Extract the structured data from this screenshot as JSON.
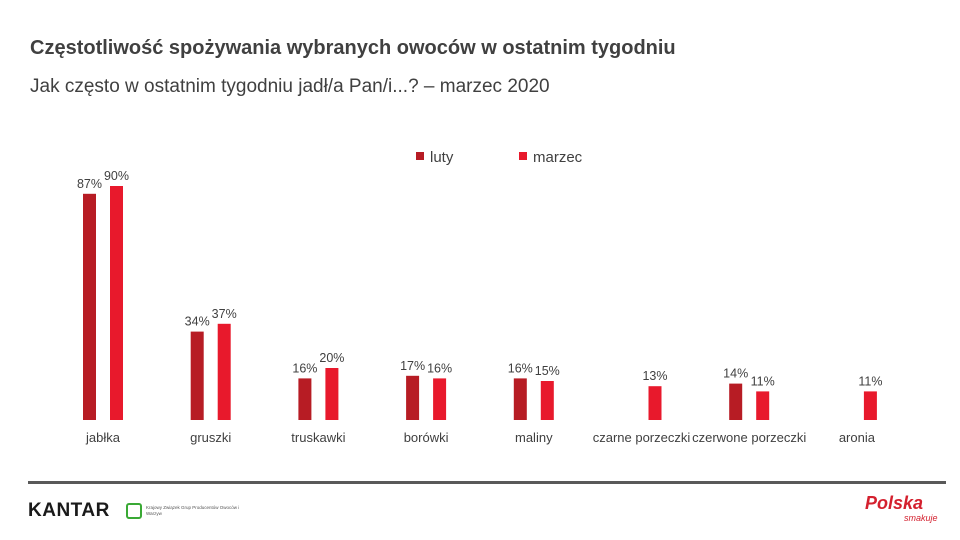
{
  "header": {
    "title": "Częstotliwość spożywania wybranych owoców w ostatnim tygodniu",
    "subtitle": "Jak często w ostatnim tygodniu jadł/a Pan/i...? – marzec 2020"
  },
  "footer": {
    "kantar": "KANTAR",
    "kzg": "Krajowy Związek Grup Producentów Owoców i Warzyw",
    "polska": "Polska",
    "smakuje": "smakuje"
  },
  "chart_data": {
    "type": "bar",
    "title": "",
    "xlabel": "",
    "ylabel": "",
    "ylim": [
      0,
      100
    ],
    "grid": false,
    "legend_position": "top-center",
    "categories": [
      "jabłka",
      "gruszki",
      "truskawki",
      "borówki",
      "maliny",
      "czarne porzeczki",
      "czerwone porzeczki",
      "aronia"
    ],
    "series": [
      {
        "name": "luty",
        "color": "#b71c24",
        "values": [
          87,
          34,
          16,
          17,
          16,
          null,
          14,
          null
        ]
      },
      {
        "name": "marzec",
        "color": "#e8192c",
        "values": [
          90,
          37,
          20,
          16,
          15,
          13,
          11,
          11
        ]
      }
    ]
  }
}
